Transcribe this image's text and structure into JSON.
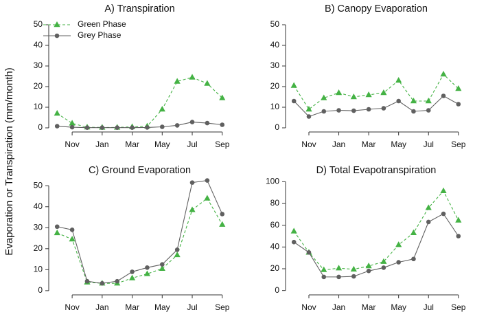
{
  "ylabel": "Evaporation or Transpiration (mm/month)",
  "chart_data": [
    {
      "type": "line",
      "title": "A) Transpiration",
      "categories": [
        null,
        "Nov",
        null,
        "Jan",
        null,
        "Mar",
        null,
        "May",
        null,
        "Jul",
        null,
        "Sep"
      ],
      "series": [
        {
          "name": "Green Phase",
          "color": "#44b244",
          "marker": "triangle",
          "dashed": true,
          "values": [
            7,
            2.2,
            0.3,
            0.2,
            0.2,
            0.5,
            0.8,
            9,
            22.5,
            24.5,
            21.5,
            14.5
          ]
        },
        {
          "name": "Grey Phase",
          "color": "#606060",
          "marker": "circle",
          "dashed": false,
          "values": [
            0.8,
            0.3,
            0.1,
            0.1,
            0.1,
            0.1,
            0.2,
            0.5,
            1.2,
            2.8,
            2.3,
            1.5
          ]
        }
      ],
      "ylim": [
        -2,
        52
      ],
      "yticks": [
        0,
        10,
        20,
        30,
        40,
        50
      ],
      "legend": "top-left"
    },
    {
      "type": "line",
      "title": "B) Canopy Evaporation",
      "categories": [
        null,
        "Nov",
        null,
        "Jan",
        null,
        "Mar",
        null,
        "May",
        null,
        "Jul",
        null,
        "Sep"
      ],
      "series": [
        {
          "color": "#44b244",
          "marker": "triangle",
          "dashed": true,
          "values": [
            20.5,
            9,
            14.5,
            17,
            15,
            16,
            17,
            23,
            13,
            13,
            26,
            19
          ]
        },
        {
          "color": "#606060",
          "marker": "circle",
          "dashed": false,
          "values": [
            13,
            5.5,
            8,
            8.5,
            8.3,
            9,
            9.5,
            13,
            8,
            8.5,
            15.5,
            11.5
          ]
        }
      ],
      "ylim": [
        -2,
        52
      ],
      "yticks": [
        0,
        10,
        20,
        30,
        40,
        50
      ]
    },
    {
      "type": "line",
      "title": "C) Ground Evaporation",
      "categories": [
        null,
        "Nov",
        null,
        "Jan",
        null,
        "Mar",
        null,
        "May",
        null,
        "Jul",
        null,
        "Sep"
      ],
      "series": [
        {
          "color": "#44b244",
          "marker": "triangle",
          "dashed": true,
          "values": [
            27.5,
            24.5,
            4,
            3.5,
            3.5,
            6,
            8,
            10.5,
            17,
            38.5,
            44,
            31.5
          ]
        },
        {
          "color": "#606060",
          "marker": "circle",
          "dashed": false,
          "values": [
            30.5,
            29,
            4.5,
            3.5,
            4.5,
            9,
            11,
            12.5,
            19.5,
            51.5,
            52.5,
            36.5
          ]
        }
      ],
      "ylim": [
        -2,
        54
      ],
      "yticks": [
        0,
        10,
        20,
        30,
        40,
        50
      ]
    },
    {
      "type": "line",
      "title": "D) Total Evapotranspiration",
      "categories": [
        null,
        "Nov",
        null,
        "Jan",
        null,
        "Mar",
        null,
        "May",
        null,
        "Jul",
        null,
        "Sep"
      ],
      "series": [
        {
          "color": "#44b244",
          "marker": "triangle",
          "dashed": true,
          "values": [
            54.5,
            35,
            19,
            20.5,
            19.5,
            22.5,
            26.5,
            42,
            53,
            76,
            91.5,
            64.5
          ]
        },
        {
          "color": "#606060",
          "marker": "circle",
          "dashed": false,
          "values": [
            44.5,
            35,
            12.5,
            12.5,
            13,
            18,
            21,
            26,
            29,
            63,
            70.5,
            50
          ]
        }
      ],
      "ylim": [
        -4,
        104
      ],
      "yticks": [
        0,
        20,
        40,
        60,
        80,
        100
      ]
    }
  ]
}
